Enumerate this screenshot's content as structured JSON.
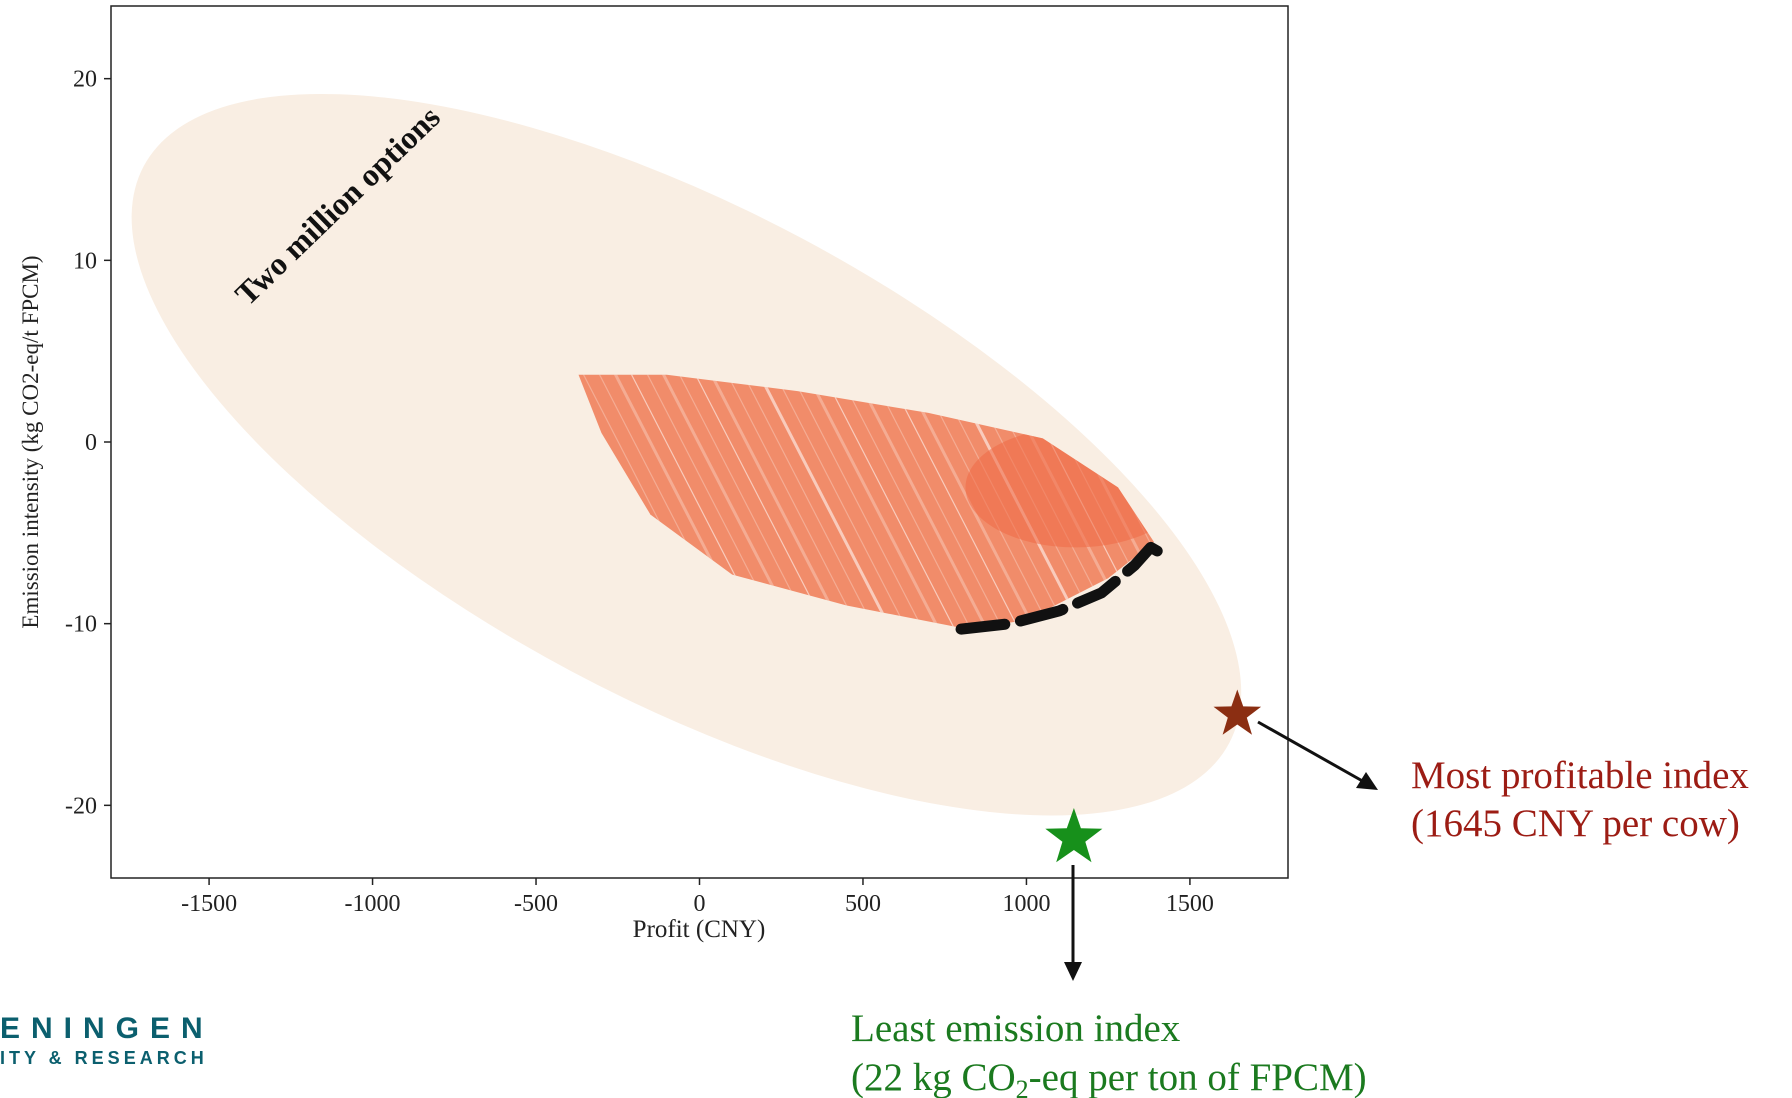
{
  "chart_data": {
    "type": "scatter",
    "xlabel": "Profit (CNY)",
    "ylabel": "Emission intensity (kg CO2-eq/t FPCM)",
    "xlim": [
      -1800,
      1800
    ],
    "ylim": [
      -24,
      24
    ],
    "x_ticks": [
      -1500,
      -1000,
      -500,
      0,
      500,
      1000,
      1500
    ],
    "y_ticks": [
      -20,
      -10,
      0,
      10,
      20
    ],
    "x_tick_labels": [
      "-1500",
      "-1000",
      "-500",
      "0",
      "500",
      "1000",
      "1500"
    ],
    "y_tick_labels": [
      "-20",
      "-10",
      "0",
      "10",
      "20"
    ],
    "grid": false,
    "series": [
      {
        "color": "#f9eee3",
        "shape": "ellipse",
        "center": [
          -40,
          -0.7
        ],
        "semi_axes": [
          1880,
          13.5
        ],
        "tilt_degrees": 28
      },
      {
        "color": "#f07a55",
        "shape": "leaf",
        "outline": [
          [
            -370,
            3.7
          ],
          [
            -100,
            3.7
          ],
          [
            300,
            2.8
          ],
          [
            700,
            1.6
          ],
          [
            1050,
            0.2
          ],
          [
            1280,
            -2.5
          ],
          [
            1390,
            -5.5
          ],
          [
            1250,
            -7.5
          ],
          [
            1000,
            -9.8
          ],
          [
            820,
            -10.3
          ],
          [
            450,
            -9.0
          ],
          [
            100,
            -7.3
          ],
          [
            -150,
            -4.0
          ],
          [
            -300,
            0.5
          ],
          [
            -370,
            3.7
          ]
        ]
      },
      {
        "color": "#111111",
        "style": "dashed",
        "points": [
          [
            800,
            -10.3
          ],
          [
            950,
            -10.0
          ],
          [
            1100,
            -9.3
          ],
          [
            1230,
            -8.3
          ],
          [
            1330,
            -6.8
          ],
          [
            1380,
            -5.8
          ],
          [
            1400,
            -6.0
          ]
        ]
      }
    ],
    "markers": [
      {
        "name": "most-profitable",
        "x": 1645,
        "y": -15,
        "color": "#8b2e12"
      },
      {
        "name": "least-emission",
        "x": 1145,
        "y": -21.8,
        "color": "#17901b"
      }
    ],
    "annotations": {
      "two_million": "Two million options",
      "most_profitable_line1": "Most profitable index",
      "most_profitable_line2": "(1645 CNY per cow)",
      "least_emission_line1": "Least emission index",
      "least_emission_line2_a": "(22 kg CO",
      "least_emission_line2_sub": "2",
      "least_emission_line2_b": "-eq per ton of FPCM)"
    },
    "colors": {
      "profit_text": "#9c1c14",
      "emission_text": "#1b7a1f"
    }
  },
  "logo": {
    "line1": "ENINGEN",
    "line2": "ITY & RESEARCH"
  }
}
